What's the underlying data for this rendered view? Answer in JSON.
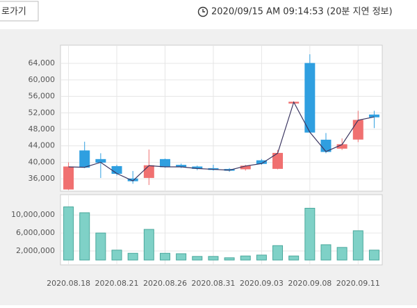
{
  "header": {
    "button": "로가기",
    "timestamp": "2020/09/15 AM 09:14:53 (20분 지연 정보)"
  },
  "chart_data": [
    {
      "type": "candlestick",
      "up_color": "#f07070",
      "down_color": "#2f9fe0",
      "line_color": "#3a3560",
      "open": [
        33500,
        42800,
        40700,
        39000,
        36000,
        36300,
        40700,
        39300,
        38900,
        38500,
        38300,
        38400,
        40400,
        38500,
        54600,
        64000,
        45400,
        43400,
        45600,
        51500
      ],
      "high": [
        40000,
        45000,
        42200,
        39400,
        37900,
        43100,
        40900,
        39700,
        39200,
        39400,
        38600,
        39400,
        40800,
        43000,
        54700,
        66200,
        47100,
        45800,
        52500,
        52500
      ],
      "low": [
        33300,
        38600,
        36200,
        36800,
        34800,
        34500,
        38700,
        38600,
        38100,
        38000,
        37700,
        38000,
        39400,
        38300,
        54500,
        47300,
        42200,
        43000,
        44900,
        48300
      ],
      "close": [
        38900,
        38800,
        40000,
        37300,
        35500,
        39200,
        38900,
        38900,
        38500,
        38300,
        38100,
        39100,
        39700,
        42200,
        54600,
        47300,
        42600,
        44300,
        50200,
        51000
      ],
      "ylim": [
        33000,
        68400
      ],
      "yticks": [
        {
          "value": 36000,
          "label": "36,000"
        },
        {
          "value": 40000,
          "label": "40,000"
        },
        {
          "value": 44000,
          "label": "44,000"
        },
        {
          "value": 48000,
          "label": "48,000"
        },
        {
          "value": 52000,
          "label": "52,000"
        },
        {
          "value": 56000,
          "label": "56,000"
        },
        {
          "value": 60000,
          "label": "60,000"
        },
        {
          "value": 64000,
          "label": "64,000"
        }
      ],
      "grid": true
    },
    {
      "type": "bar",
      "color": "#7fd1c7",
      "categories": [
        "2020.08.18",
        null,
        null,
        "2020.08.21",
        null,
        null,
        "2020.08.26",
        null,
        null,
        "2020.08.31",
        null,
        null,
        "2020.09.03",
        null,
        null,
        "2020.09.08",
        null,
        null,
        "2020.09.11",
        null
      ],
      "values": [
        11800000,
        10500000,
        6000000,
        2200000,
        1500000,
        6800000,
        1500000,
        1400000,
        800000,
        800000,
        500000,
        900000,
        1100000,
        3200000,
        900000,
        11500000,
        3400000,
        2800000,
        6500000,
        2200000
      ],
      "ylim": [
        0,
        14200000
      ],
      "yticks": [
        {
          "value": 2000000,
          "label": "2,000,000"
        },
        {
          "value": 6000000,
          "label": "6,000,000"
        },
        {
          "value": 10000000,
          "label": "10,000,000"
        }
      ],
      "grid": true
    }
  ]
}
